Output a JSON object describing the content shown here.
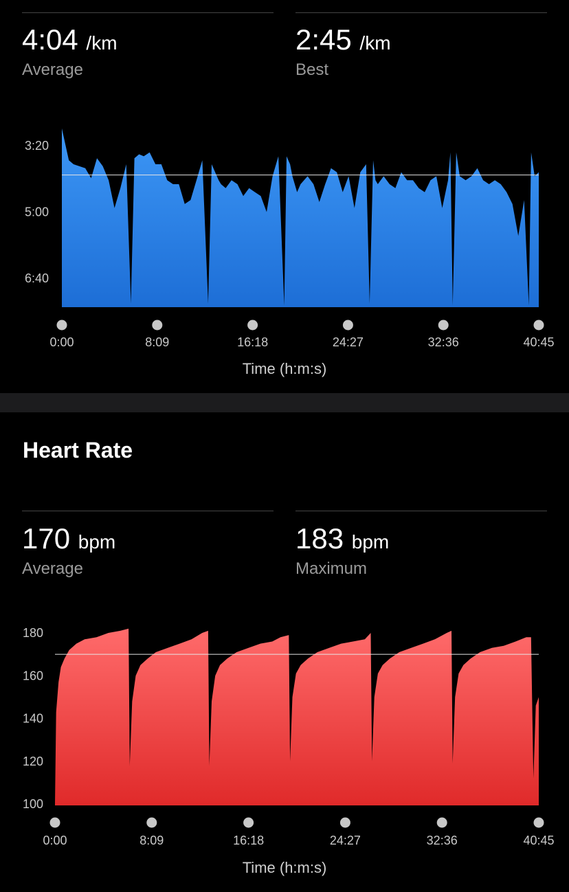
{
  "pace": {
    "stats": [
      {
        "value": "4:04",
        "unit": "/km",
        "label": "Average"
      },
      {
        "value": "2:45",
        "unit": "/km",
        "label": "Best"
      }
    ]
  },
  "heart_rate": {
    "title": "Heart Rate",
    "stats": [
      {
        "value": "170",
        "unit": "bpm",
        "label": "Average"
      },
      {
        "value": "183",
        "unit": "bpm",
        "label": "Maximum"
      }
    ]
  },
  "colors": {
    "pace_top": "#3d97f6",
    "pace_bottom": "#1d6ed6",
    "hr_top": "#ff6b6b",
    "hr_bottom": "#e02a2a"
  },
  "chart_data": [
    {
      "type": "area",
      "title": "",
      "xlabel": "Time (h:m:s)",
      "ylabel": "",
      "x_ticks": [
        "0:00",
        "8:09",
        "16:18",
        "24:27",
        "32:36",
        "40:45"
      ],
      "y_ticks": [
        "3:20",
        "5:00",
        "6:40"
      ],
      "y_inverted": true,
      "y_unit": "min/km",
      "ylim": [
        2.75,
        7.5
      ],
      "xlim": [
        0,
        40.75
      ],
      "reference_line": 4.07,
      "series": [
        {
          "x": [
            0,
            0.3,
            0.6,
            1,
            1.5,
            2,
            2.5,
            3,
            3.5,
            4,
            4.5,
            5,
            5.5,
            5.9,
            6.2,
            6.6,
            7,
            7.5,
            8,
            8.5,
            9,
            9.5,
            10,
            10.5,
            11,
            11.5,
            12,
            12.5,
            12.8,
            13.1,
            13.4,
            13.6,
            14,
            14.5,
            15,
            15.5,
            16,
            16.5,
            17,
            17.5,
            18,
            18.5,
            19,
            19.2,
            19.5,
            19.7,
            20.1,
            20.4,
            21,
            21.5,
            22,
            22.5,
            23,
            23.5,
            24,
            24.5,
            25,
            25.5,
            26,
            26.3,
            26.6,
            26.8,
            27,
            27.5,
            28,
            28.5,
            29,
            29.5,
            30,
            30.5,
            31,
            31.5,
            32,
            32.5,
            33,
            33.2,
            33.4,
            33.7,
            34,
            34.5,
            35,
            35.5,
            36,
            36.5,
            37,
            37.5,
            38,
            38.5,
            39,
            39.5,
            39.9,
            40.1,
            40.4,
            40.75
          ],
          "y": [
            2.9,
            3.3,
            3.7,
            3.8,
            3.85,
            3.9,
            4.15,
            3.65,
            3.85,
            4.2,
            4.9,
            4.4,
            3.8,
            7.3,
            3.65,
            3.55,
            3.6,
            3.5,
            3.8,
            3.8,
            4.2,
            4.3,
            4.3,
            4.8,
            4.7,
            4.2,
            3.7,
            7.3,
            3.8,
            4.0,
            4.2,
            4.3,
            4.4,
            4.2,
            4.3,
            4.6,
            4.4,
            4.5,
            4.6,
            5.0,
            4.1,
            3.6,
            7.35,
            3.6,
            3.8,
            4.1,
            4.5,
            4.3,
            4.1,
            4.3,
            4.75,
            4.3,
            3.9,
            4.0,
            4.5,
            4.1,
            4.9,
            4.0,
            3.8,
            7.3,
            3.7,
            4.2,
            4.3,
            4.1,
            4.3,
            4.4,
            4.0,
            4.2,
            4.2,
            4.4,
            4.5,
            4.2,
            4.1,
            4.9,
            4.2,
            3.5,
            7.35,
            3.5,
            4.1,
            4.2,
            4.1,
            3.9,
            4.2,
            4.3,
            4.2,
            4.3,
            4.5,
            4.8,
            5.6,
            4.7,
            7.35,
            3.5,
            4.1,
            4.0
          ]
        }
      ]
    },
    {
      "type": "area",
      "title": "",
      "xlabel": "Time (h:m:s)",
      "ylabel": "",
      "x_ticks": [
        "0:00",
        "8:09",
        "16:18",
        "24:27",
        "32:36",
        "40:45"
      ],
      "y_ticks": [
        "100",
        "120",
        "140",
        "160",
        "180"
      ],
      "ylim": [
        100,
        183
      ],
      "xlim": [
        0,
        40.75
      ],
      "reference_line": 170,
      "series": [
        {
          "x": [
            0,
            0.1,
            0.3,
            0.5,
            0.8,
            1.2,
            1.8,
            2.5,
            3.5,
            4.5,
            5.5,
            6.2,
            6.3,
            6.5,
            6.8,
            7.2,
            7.8,
            8.5,
            9.5,
            10.5,
            11.5,
            12.4,
            12.9,
            13.0,
            13.2,
            13.5,
            13.9,
            14.5,
            15.3,
            16.3,
            17.3,
            18.3,
            19.0,
            19.7,
            19.8,
            20.0,
            20.3,
            20.7,
            21.3,
            22.1,
            23.1,
            24.1,
            25.1,
            26.1,
            26.6,
            26.7,
            26.9,
            27.2,
            27.6,
            28.2,
            29.0,
            30.0,
            31.0,
            32.0,
            33.0,
            33.4,
            33.5,
            33.7,
            34.0,
            34.4,
            35.0,
            35.8,
            36.8,
            37.8,
            38.8,
            39.7,
            40.1,
            40.3,
            40.5,
            40.75
          ],
          "y": [
            100,
            143,
            157,
            164,
            168,
            172,
            175,
            177,
            178,
            180,
            181,
            182,
            118,
            148,
            160,
            165,
            168,
            171,
            173,
            175,
            177,
            180,
            181,
            118,
            148,
            160,
            165,
            168,
            171,
            173,
            175,
            176,
            178,
            179,
            120,
            150,
            161,
            165,
            168,
            171,
            173,
            175,
            176,
            177,
            180,
            120,
            150,
            161,
            165,
            168,
            171,
            173,
            175,
            177,
            180,
            181,
            119,
            150,
            161,
            165,
            168,
            171,
            173,
            174,
            176,
            178,
            178,
            112,
            146,
            150
          ]
        }
      ]
    }
  ]
}
